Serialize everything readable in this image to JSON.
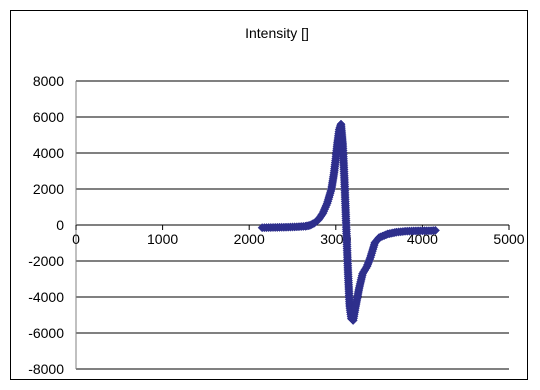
{
  "chart_data": {
    "type": "scatter",
    "title": "Intensity []",
    "xlabel": "",
    "ylabel": "",
    "xlim": [
      0,
      5000
    ],
    "ylim": [
      -8000,
      8000
    ],
    "x_ticks": [
      0,
      1000,
      2000,
      3000,
      4000,
      5000
    ],
    "y_ticks": [
      8000,
      6000,
      4000,
      2000,
      0,
      -2000,
      -4000,
      -6000,
      -8000
    ],
    "grid": "horizontal",
    "legend": "none",
    "marker_color": "#2e2f8c",
    "marker_shape": "diamond",
    "series": [
      {
        "points": [
          [
            2150,
            -150
          ],
          [
            2250,
            -140
          ],
          [
            2350,
            -130
          ],
          [
            2450,
            -120
          ],
          [
            2550,
            -100
          ],
          [
            2650,
            -70
          ],
          [
            2700,
            -20
          ],
          [
            2750,
            100
          ],
          [
            2800,
            300
          ],
          [
            2850,
            650
          ],
          [
            2900,
            1200
          ],
          [
            2950,
            2000
          ],
          [
            2980,
            2900
          ],
          [
            3000,
            3700
          ],
          [
            3020,
            4600
          ],
          [
            3040,
            5300
          ],
          [
            3060,
            5600
          ],
          [
            3080,
            4500
          ],
          [
            3100,
            2500
          ],
          [
            3120,
            0
          ],
          [
            3140,
            -2500
          ],
          [
            3160,
            -4500
          ],
          [
            3180,
            -5200
          ],
          [
            3200,
            -5300
          ],
          [
            3230,
            -4500
          ],
          [
            3270,
            -3500
          ],
          [
            3310,
            -2700
          ],
          [
            3360,
            -2300
          ],
          [
            3400,
            -1800
          ],
          [
            3450,
            -1000
          ],
          [
            3500,
            -700
          ],
          [
            3600,
            -500
          ],
          [
            3700,
            -400
          ],
          [
            3800,
            -350
          ],
          [
            3900,
            -330
          ],
          [
            4000,
            -320
          ],
          [
            4100,
            -320
          ],
          [
            4150,
            -300
          ]
        ]
      }
    ]
  }
}
